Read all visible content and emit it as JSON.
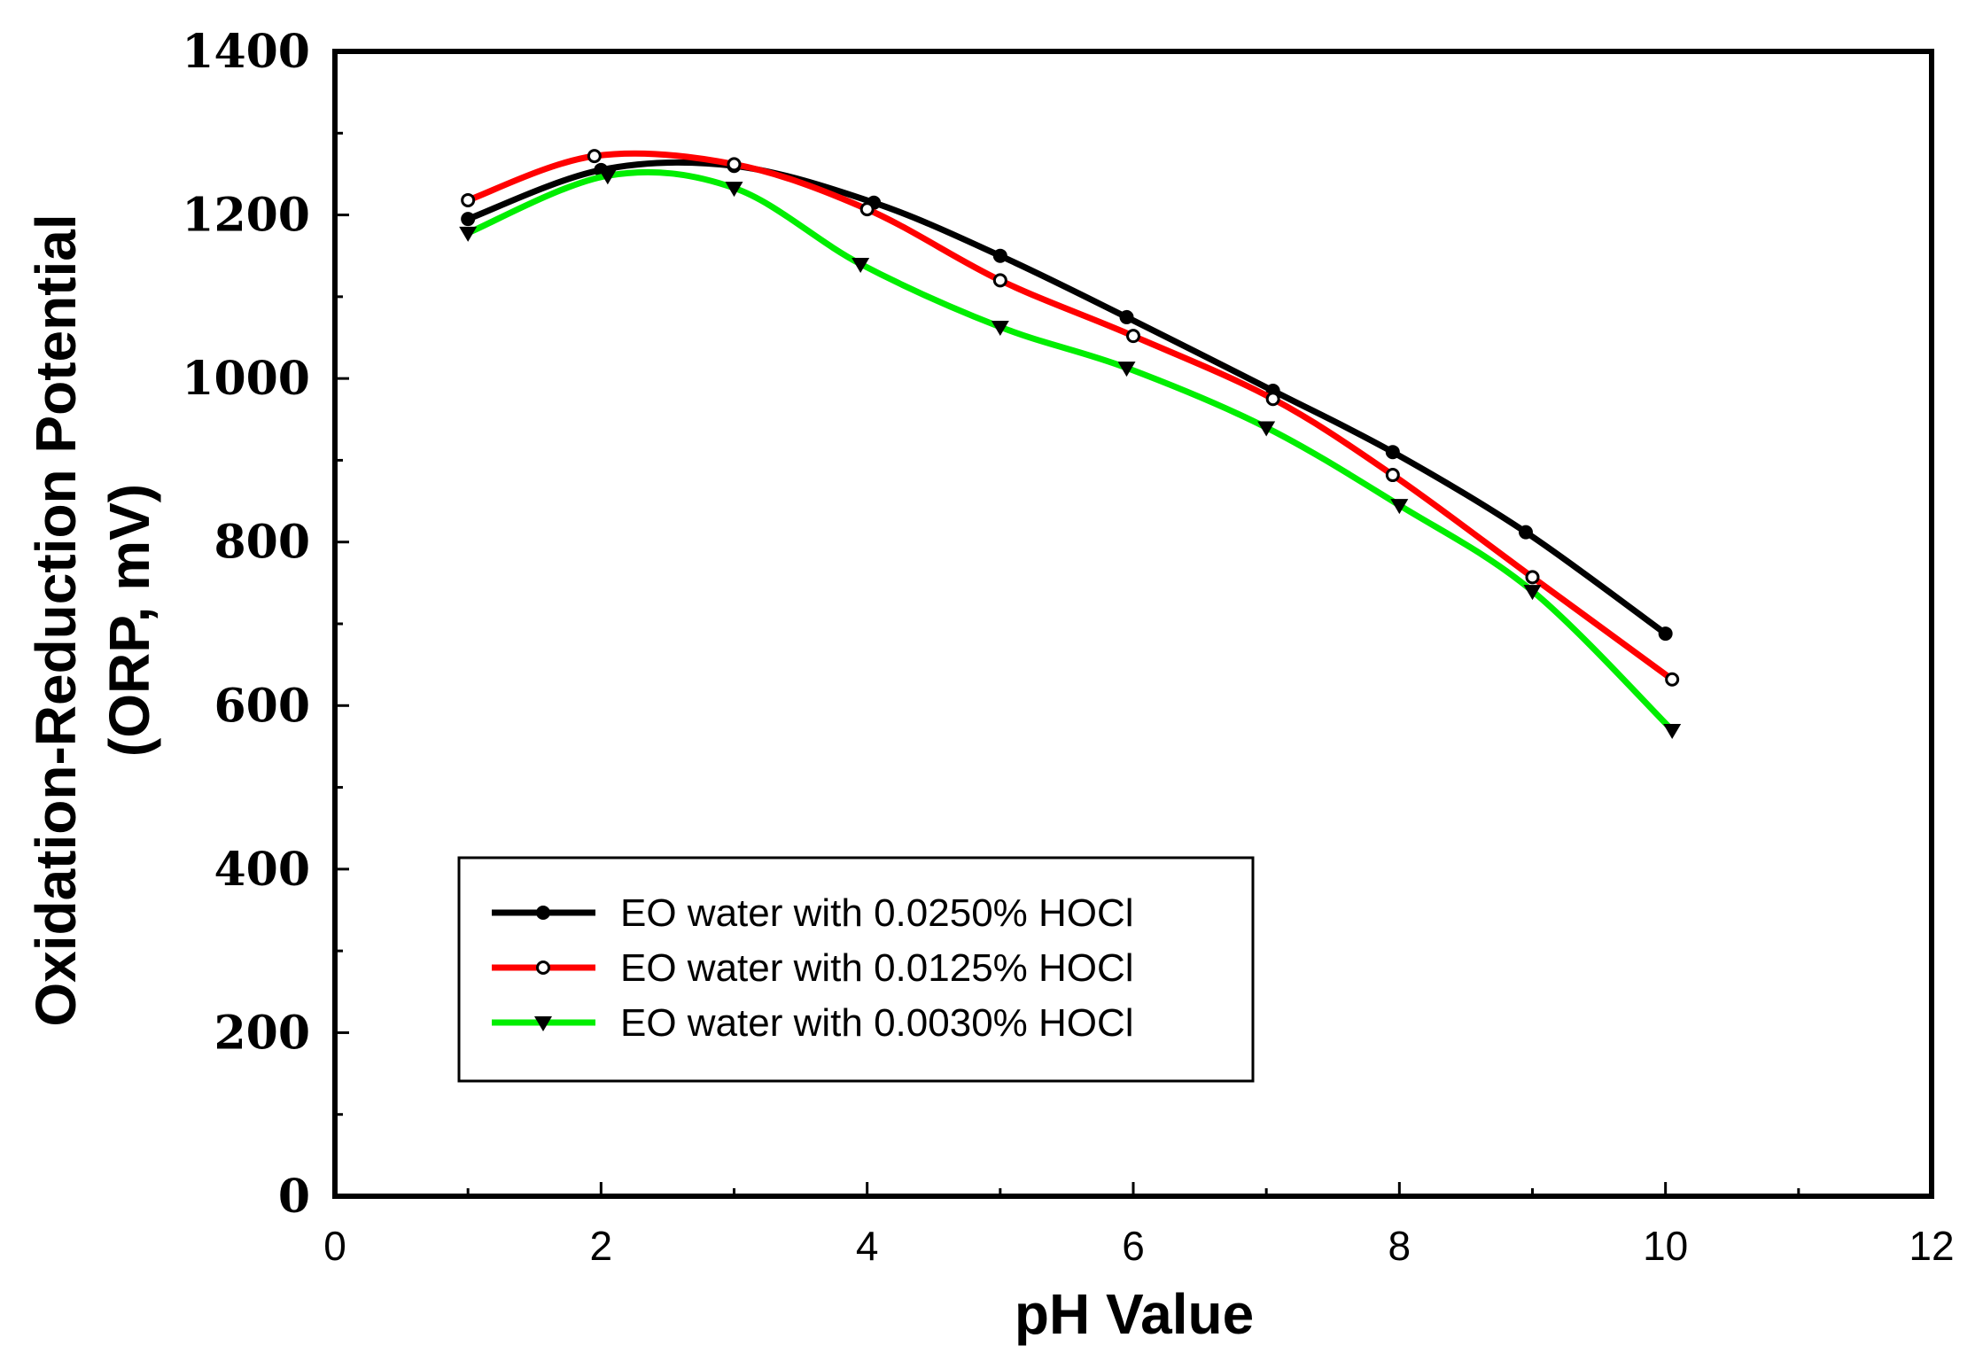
{
  "chart_data": {
    "type": "line",
    "title": "",
    "xlabel": "pH Value",
    "ylabel_line1": "Oxidation-Reduction Potential",
    "ylabel_line2": "(ORP, mV)",
    "xlim": [
      0,
      12
    ],
    "ylim": [
      0,
      1400
    ],
    "xticks": [
      0,
      2,
      4,
      6,
      8,
      10,
      12
    ],
    "yticks": [
      0,
      200,
      400,
      600,
      800,
      1000,
      1200,
      1400
    ],
    "xtick_labels": [
      "0",
      "2",
      "4",
      "6",
      "8",
      "10",
      "12"
    ],
    "ytick_labels": [
      "0",
      "200",
      "400",
      "600",
      "800",
      "1000",
      "1200",
      "1400"
    ],
    "grid": false,
    "legend_position": "lower-left",
    "series": [
      {
        "name": "EO water with 0.0250% HOCl",
        "color": "#000000",
        "marker": "filled-circle",
        "points": [
          [
            1.0,
            1195
          ],
          [
            2.0,
            1255
          ],
          [
            3.0,
            1260
          ],
          [
            4.05,
            1215
          ],
          [
            5.0,
            1150
          ],
          [
            5.95,
            1075
          ],
          [
            7.05,
            985
          ],
          [
            7.95,
            910
          ],
          [
            8.95,
            812
          ],
          [
            10.0,
            688
          ]
        ]
      },
      {
        "name": "EO water with 0.0125% HOCl",
        "color": "#ff0000",
        "marker": "open-circle",
        "points": [
          [
            1.0,
            1218
          ],
          [
            1.95,
            1272
          ],
          [
            3.0,
            1262
          ],
          [
            4.0,
            1207
          ],
          [
            5.0,
            1120
          ],
          [
            6.0,
            1052
          ],
          [
            7.05,
            975
          ],
          [
            7.95,
            882
          ],
          [
            9.0,
            757
          ],
          [
            10.05,
            632
          ]
        ]
      },
      {
        "name": "EO water with 0.0030% HOCl",
        "color": "#00ee00",
        "marker": "filled-triangle-down",
        "points": [
          [
            1.0,
            1178
          ],
          [
            2.05,
            1248
          ],
          [
            3.0,
            1233
          ],
          [
            3.95,
            1140
          ],
          [
            5.0,
            1063
          ],
          [
            5.95,
            1013
          ],
          [
            7.0,
            940
          ],
          [
            8.0,
            845
          ],
          [
            9.0,
            740
          ],
          [
            10.05,
            570
          ]
        ]
      }
    ]
  }
}
